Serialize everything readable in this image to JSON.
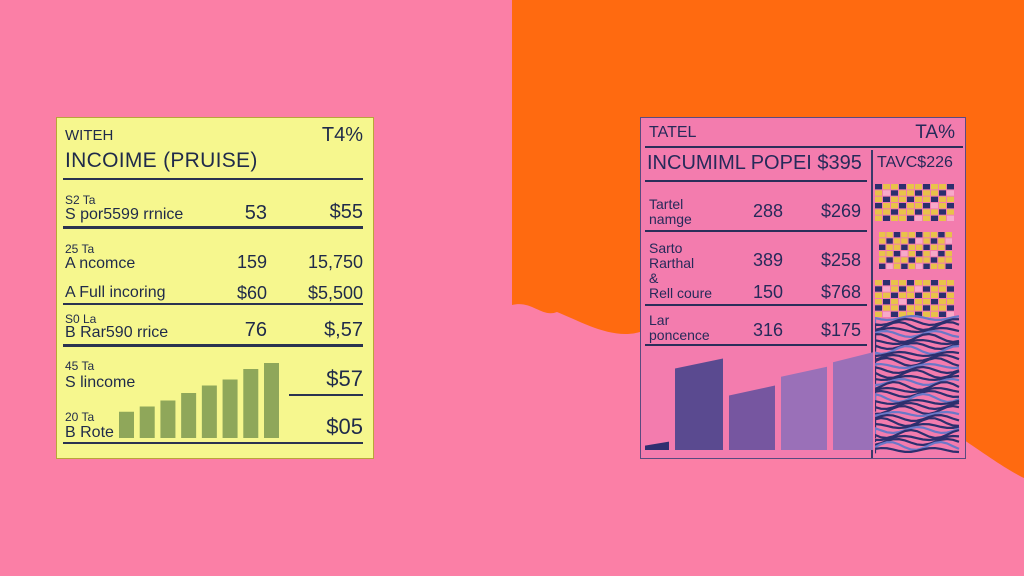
{
  "colors": {
    "left_background": "#fb7fa6",
    "right_background_top": "#ff6a10",
    "right_background_bottom": "#fb7fa6",
    "left_card_fill": "#f6f78e",
    "right_card_fill": "#f37cae",
    "left_bars": "#8fa75a",
    "right_bars": [
      "#2f2f70",
      "#5a4a90",
      "#7656a0",
      "#9a70b8"
    ]
  },
  "left_card": {
    "header_left": "WITEH",
    "header_right": "T4%",
    "title": "INCOIME (PRUISE)",
    "rows": [
      {
        "small": "S2 Ta",
        "label": "S por5599 rrnice",
        "v1": "53",
        "v2": "$55"
      },
      {
        "small": "25 Ta",
        "label": "A ncomce",
        "v1": "159",
        "v2": "15,750"
      },
      {
        "small": "",
        "label": "A Full incoring",
        "v1": "$60",
        "v2": "$5,500"
      },
      {
        "small": "S0 La",
        "label": "B Rar590 rrice",
        "v1": "76",
        "v2": "$,57"
      },
      {
        "small": "45 Ta",
        "label": "S lincome",
        "v1": "",
        "v2": "$57"
      },
      {
        "small": "20 Ta",
        "label": "B Rote",
        "v1": "",
        "v2": "$05"
      }
    ],
    "bar_levels": [
      0.35,
      0.42,
      0.5,
      0.6,
      0.7,
      0.78,
      0.92,
      1.0
    ]
  },
  "right_card": {
    "header_left": "TATEL",
    "header_right": "TA%",
    "title": "INCUMIML POPEI $395",
    "title_right": "TAVC$226",
    "rows": [
      {
        "label": "Tartel\nnamge",
        "v1": "288",
        "v2": "$269"
      },
      {
        "label": "Sarto\nRarthal\n&",
        "v1": "389",
        "v2": "$258"
      },
      {
        "label": "Rell coure",
        "v1": "150",
        "v2": "$768"
      },
      {
        "label": "Lar\nponcence",
        "v1": "316",
        "v2": "$175"
      }
    ],
    "bar_levels": [
      0.08,
      0.88,
      0.62,
      0.8,
      0.94
    ]
  }
}
